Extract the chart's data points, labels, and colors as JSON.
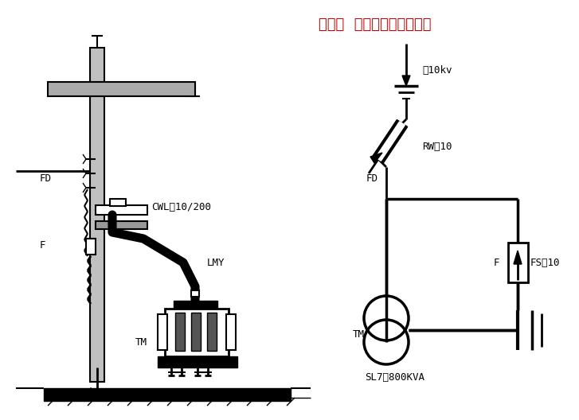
{
  "title": "第一节  施工图常用图形符号",
  "title_color": "#cc0000",
  "title_fontsize": 13,
  "bg_color": "#ffffff",
  "line_color": "#000000",
  "labels": {
    "FD_left": "FD",
    "F_left": "F",
    "CWL": "CWL－10/200",
    "LMY": "LMY",
    "TM_left": "TM",
    "tenkv": "～10kv",
    "RW10": "RW－10",
    "FD_right": "FD",
    "F_right": "F",
    "FS10": "FS－10",
    "TM_right": "TM",
    "SL7": "SL7－800KVA"
  }
}
